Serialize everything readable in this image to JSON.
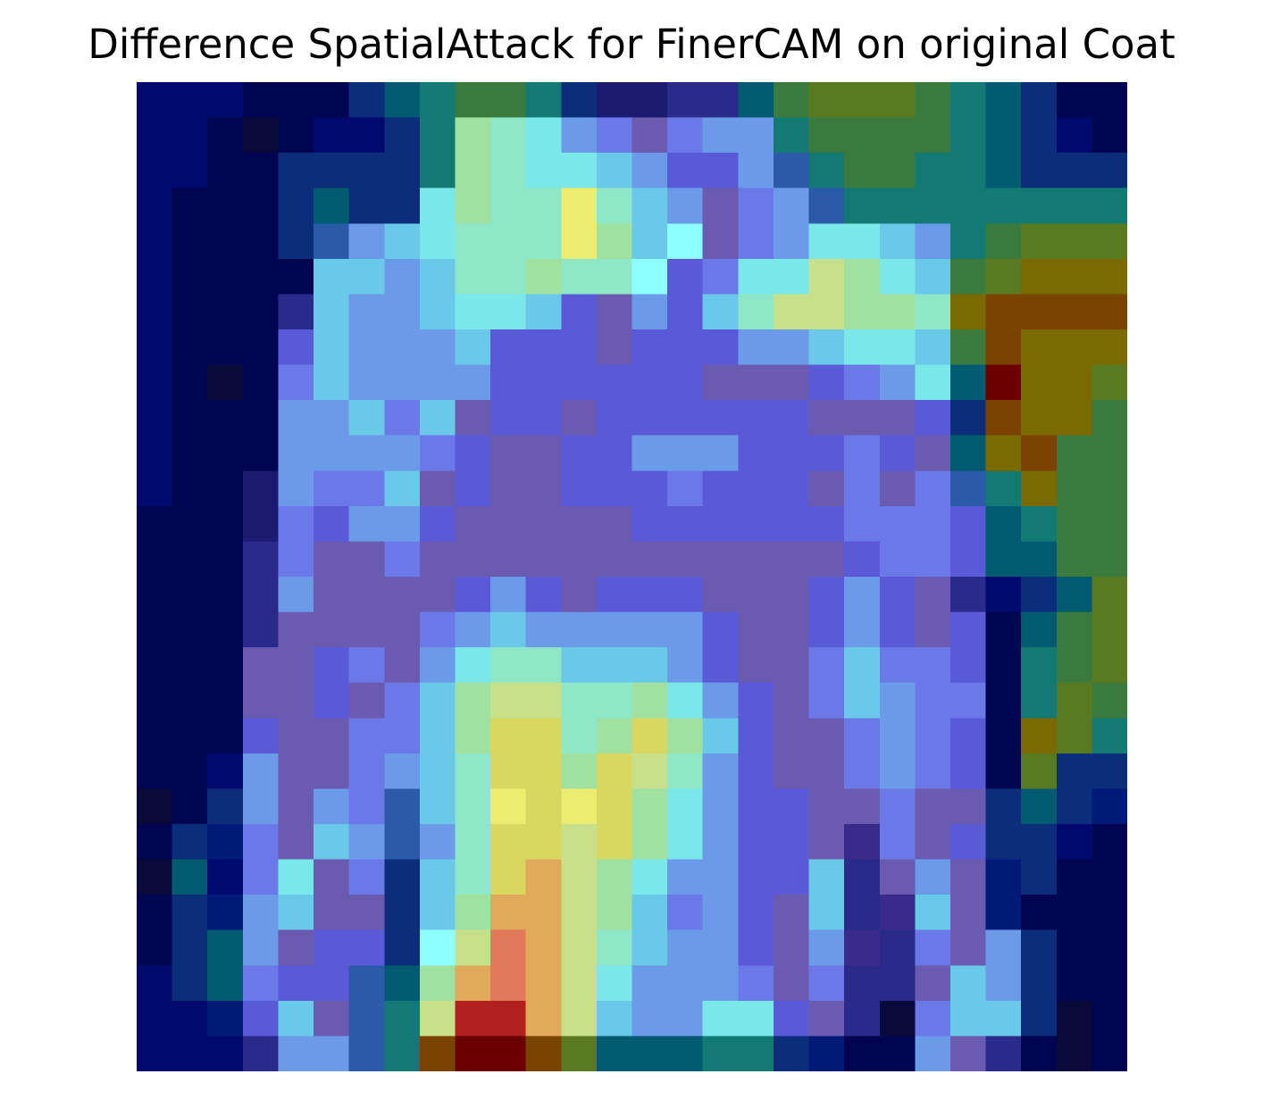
{
  "title": "Difference SpatialAttack for FinerCAM on original Coat",
  "image": {
    "grid_size": 28,
    "interpolation": "nearest",
    "axes": "off",
    "colormap": "jet",
    "overlay_alpha": 0.5,
    "content": "grayscale coat image with jet-colormap CAM difference overlay"
  },
  "palette": {
    "A": "#000a6e",
    "B": "#000552",
    "C": "#001a78",
    "D": "#0b2d7a",
    "E": "#005a70",
    "F": "#127a72",
    "G": "#3b7a3d",
    "H": "#5a7a22",
    "I": "#7a6a00",
    "J": "#7a4400",
    "K": "#6a0000",
    "L": "#b32020",
    "M": "#e07a5a",
    "N": "#e0aa5a",
    "O": "#d8d860",
    "P": "#c8e08a",
    "Q": "#a0e0a0",
    "R": "#8ee8c8",
    "S": "#7ae8e8",
    "T": "#6ac8e8",
    "U": "#6a9ae8",
    "V": "#6a78e8",
    "W": "#5a5ad8",
    "X": "#6a5ab0",
    "Y": "#5a5aa0",
    "Z": "#2a2a8a",
    "a": "#1a1a70",
    "b": "#2a5aa8",
    "c": "#ecec70",
    "d": "#8effff",
    "e": "#3a2a8a",
    "f": "#0a0a3a"
  },
  "grid": [
    "AAABBBDEFGGFDaaZZEGHHHGFEDBB",
    "AABfBAADFQRSUVXVUUFGGGGFEDAB",
    "AABBDDDDFQRSSTUWWUbFGGFFEDDD",
    "ABBBDEDDSQRRcRTUXVUbFFFFFFFF",
    "ABBBDbUTSRRRcQTdXVUSSTUFGHHH",
    "ABBBBTTUTRRQRRdWVSSPQSTGHIII",
    "ABBBZTUUTSSTWXUWTRPPQQRIJJJJ",
    "ABBBWTUUUTWWWXWWWUUTSSTGJIII",
    "ABfBVTUUUUWWWWWWXXXWVUSEKIIH",
    "ABBBUUTVTXWWXWWWWWWXXXWDJIIG",
    "ABBBUUUUVWXXWWUUUWWWVWXEIJGG",
    "ABBaUVVTXWXXWWWVWWWXVXVbFIGG",
    "BBBaVWUUWXXXXXWWWWWWVVVWEFGG",
    "BBBZVXXVXXXXXXXXXXXXWVVWEEGG",
    "BBBZUXXXXWUWXWWWXXXWUWXZADEH",
    "BBBZXXXXVUTUUUUUWXXWUWXWBEGH",
    "BBBXXWVXUSRRTTTUWXXVTVVWBFGH",
    "BBBXXWXVTQPPRRQSUWXVTUVVBFHG",
    "BBBWXXVVTQOORQOQTWXXVUVWBIHF",
    "BBAUXXVUTROOQOPRUWXXVUVWBHDD",
    "fBDUXUVbTRcOcOQSUWWXXVXXDEDC",
    "BDCVXTUbUROOPOQSUWWXeVXWDDAB",
    "fEAVSXVDTRONPQSUUWWTZXUXCDBB",
    "BDCUTXXDTQNNPQTVUWXTZeTXCBBB",
    "BDEUXWWDdPMNPRTUUWXUeZVXUDBB",
    "ADEVWWbEQNMNPSUUUVXVZZXTUDBB",
    "AACWTXbFPLLNPTUUSSWXZfVTTDfB",
    "AAAZUUbFJKKJHEEEFFDCBBUXZBfB"
  ]
}
